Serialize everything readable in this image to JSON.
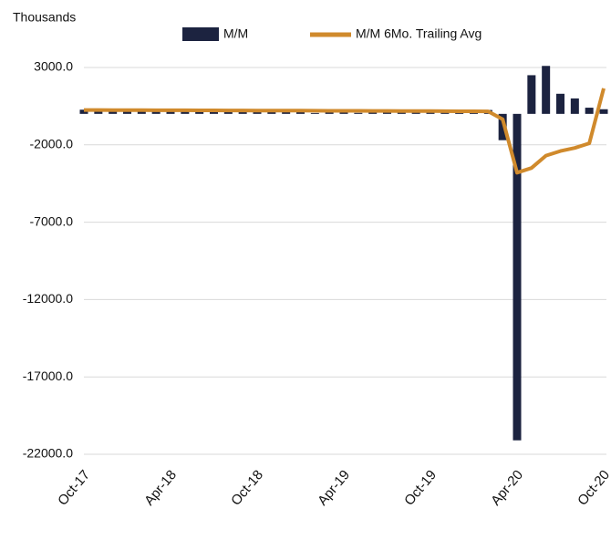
{
  "chart_data": {
    "type": "bar_line",
    "axis_label": "Thousands",
    "categories": [
      "Oct-17",
      null,
      null,
      null,
      null,
      null,
      "Apr-18",
      null,
      null,
      null,
      null,
      null,
      "Oct-18",
      null,
      null,
      null,
      null,
      null,
      "Apr-19",
      null,
      null,
      null,
      null,
      null,
      "Oct-19",
      null,
      null,
      null,
      null,
      null,
      "Apr-20",
      null,
      null,
      null,
      null,
      null,
      "Oct-20"
    ],
    "series": [
      {
        "name": "M/M",
        "color": "#1c2340",
        "kind": "bar",
        "values": [
          271,
          216,
          175,
          176,
          324,
          155,
          175,
          268,
          208,
          178,
          282,
          108,
          277,
          196,
          227,
          312,
          56,
          189,
          216,
          62,
          178,
          166,
          219,
          180,
          156,
          256,
          184,
          214,
          251,
          -1700,
          -21100,
          2500,
          3100,
          1300,
          1000,
          400,
          300
        ]
      },
      {
        "name": "M/M 6Mo. Trailing Avg",
        "color": "#d08a2c",
        "kind": "line",
        "values": [
          250,
          250,
          245,
          240,
          240,
          235,
          230,
          230,
          225,
          225,
          220,
          220,
          215,
          215,
          210,
          210,
          205,
          200,
          200,
          195,
          190,
          190,
          185,
          180,
          180,
          175,
          170,
          165,
          160,
          -350,
          -3800,
          -3500,
          -2700,
          -2400,
          -2200,
          -1900,
          1650
        ]
      }
    ],
    "ylim": [
      -22000,
      4000
    ],
    "yticks": [
      {
        "value": 3000,
        "label": "3000.0"
      },
      {
        "value": -2000,
        "label": "-2000.0"
      },
      {
        "value": -7000,
        "label": "-7000.0"
      },
      {
        "value": -12000,
        "label": "-12000.0"
      },
      {
        "value": -17000,
        "label": "-17000.0"
      },
      {
        "value": -22000,
        "label": "-22000.0"
      }
    ],
    "grid": true
  }
}
